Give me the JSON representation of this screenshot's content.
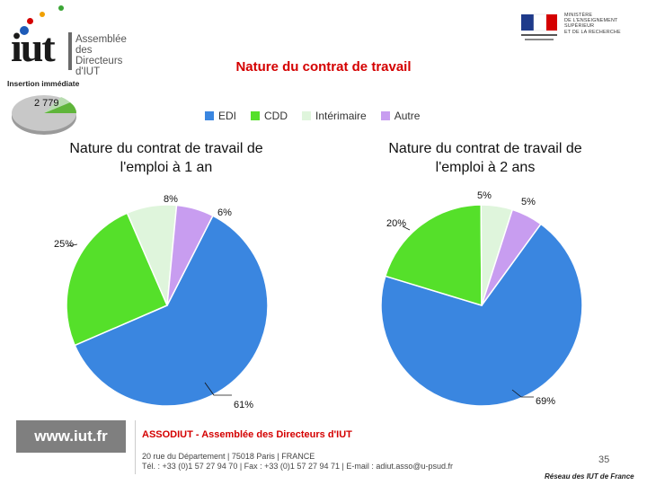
{
  "header": {
    "logo_text": "iut",
    "logo_subtitle_lines": [
      "Assemblée",
      "des Directeurs",
      "d'IUT"
    ],
    "insertion_label": "Insertion immédiate",
    "mini_chart_value": "2 779",
    "ministry_lines": [
      "MINISTÈRE",
      "DE L'ENSEIGNEMENT SUPÉRIEUR",
      "ET DE LA RECHERCHE"
    ]
  },
  "title": "Nature du contrat de travail",
  "legend": [
    {
      "label": "EDI",
      "color": "#3a86e0"
    },
    {
      "label": "CDD",
      "color": "#55e02a"
    },
    {
      "label": "Intérimaire",
      "color": "#dff5dc"
    },
    {
      "label": "Autre",
      "color": "#c89df0"
    }
  ],
  "chart_data": [
    {
      "type": "pie",
      "title_lines": [
        "Nature du contrat de travail de",
        "l'emploi à 1 an"
      ],
      "categories": [
        "EDI",
        "CDD",
        "Intérimaire",
        "Autre"
      ],
      "values": [
        61,
        25,
        8,
        6
      ],
      "labels": [
        "61%",
        "25%",
        "8%",
        "6%"
      ]
    },
    {
      "type": "pie",
      "title_lines": [
        "Nature du contrat de travail de",
        "l'emploi à 2 ans"
      ],
      "categories": [
        "EDI",
        "CDD",
        "Intérimaire",
        "Autre"
      ],
      "values": [
        69,
        20,
        5,
        5
      ],
      "labels": [
        "69%",
        "20%",
        "5%",
        "5%"
      ]
    }
  ],
  "footer": {
    "url": "www.iut.fr",
    "assoc": "ASSODIUT - Assemblée des Directeurs d'IUT",
    "address_line1": "20 rue du Département | 75018 Paris | FRANCE",
    "address_line2": "Tél. : +33 (0)1 57 27 94 70 | Fax : +33 (0)1 57 27 94 71 | E-mail : adiut.asso@u-psud.fr",
    "page_number": "35",
    "network": "Réseau des IUT de France"
  }
}
